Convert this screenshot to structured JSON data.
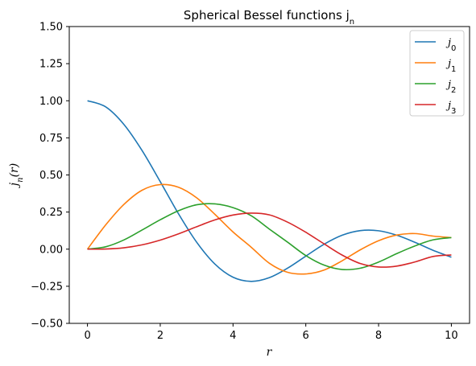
{
  "chart_data": {
    "type": "line",
    "title": "Spherical Bessel functions j_n",
    "xlabel": "r",
    "ylabel": "j_n(r)",
    "xlim": [
      -0.5,
      10.5
    ],
    "ylim": [
      -0.5,
      1.5
    ],
    "xticks": [
      0,
      2,
      4,
      6,
      8,
      10
    ],
    "yticks": [
      -0.5,
      -0.25,
      0.0,
      0.25,
      0.5,
      0.75,
      1.0,
      1.25,
      1.5
    ],
    "ytick_labels": [
      "−0.50",
      "−0.25",
      "0.00",
      "0.25",
      "0.50",
      "0.75",
      "1.00",
      "1.25",
      "1.50"
    ],
    "grid": false,
    "legend_position": "top-right",
    "x": [
      0,
      0.5,
      1,
      1.5,
      2,
      2.5,
      3,
      3.5,
      4,
      4.5,
      5,
      5.5,
      6,
      6.5,
      7,
      7.5,
      8,
      8.5,
      9,
      9.5,
      10
    ],
    "series": [
      {
        "name": "j_0",
        "color": "#1f77b4",
        "values": [
          1.0,
          0.959,
          0.841,
          0.665,
          0.455,
          0.239,
          0.047,
          -0.1,
          -0.189,
          -0.217,
          -0.192,
          -0.128,
          -0.047,
          0.033,
          0.094,
          0.125,
          0.124,
          0.094,
          0.046,
          -0.008,
          -0.054
        ]
      },
      {
        "name": "j_1",
        "color": "#ff7f0e",
        "values": [
          0.0,
          0.163,
          0.301,
          0.397,
          0.435,
          0.417,
          0.346,
          0.235,
          0.116,
          0.013,
          -0.095,
          -0.156,
          -0.167,
          -0.141,
          -0.078,
          -0.004,
          0.057,
          0.095,
          0.105,
          0.088,
          0.078
        ]
      },
      {
        "name": "j_2",
        "color": "#2ca02c",
        "values": [
          0.0,
          0.016,
          0.062,
          0.129,
          0.198,
          0.259,
          0.299,
          0.305,
          0.28,
          0.225,
          0.135,
          0.047,
          -0.043,
          -0.107,
          -0.137,
          -0.128,
          -0.087,
          -0.03,
          0.022,
          0.063,
          0.078
        ]
      },
      {
        "name": "j_3",
        "color": "#d62728",
        "values": [
          0.0,
          0.001,
          0.009,
          0.029,
          0.061,
          0.103,
          0.151,
          0.197,
          0.23,
          0.243,
          0.231,
          0.182,
          0.114,
          0.036,
          -0.04,
          -0.097,
          -0.12,
          -0.114,
          -0.086,
          -0.049,
          -0.039
        ]
      }
    ]
  }
}
